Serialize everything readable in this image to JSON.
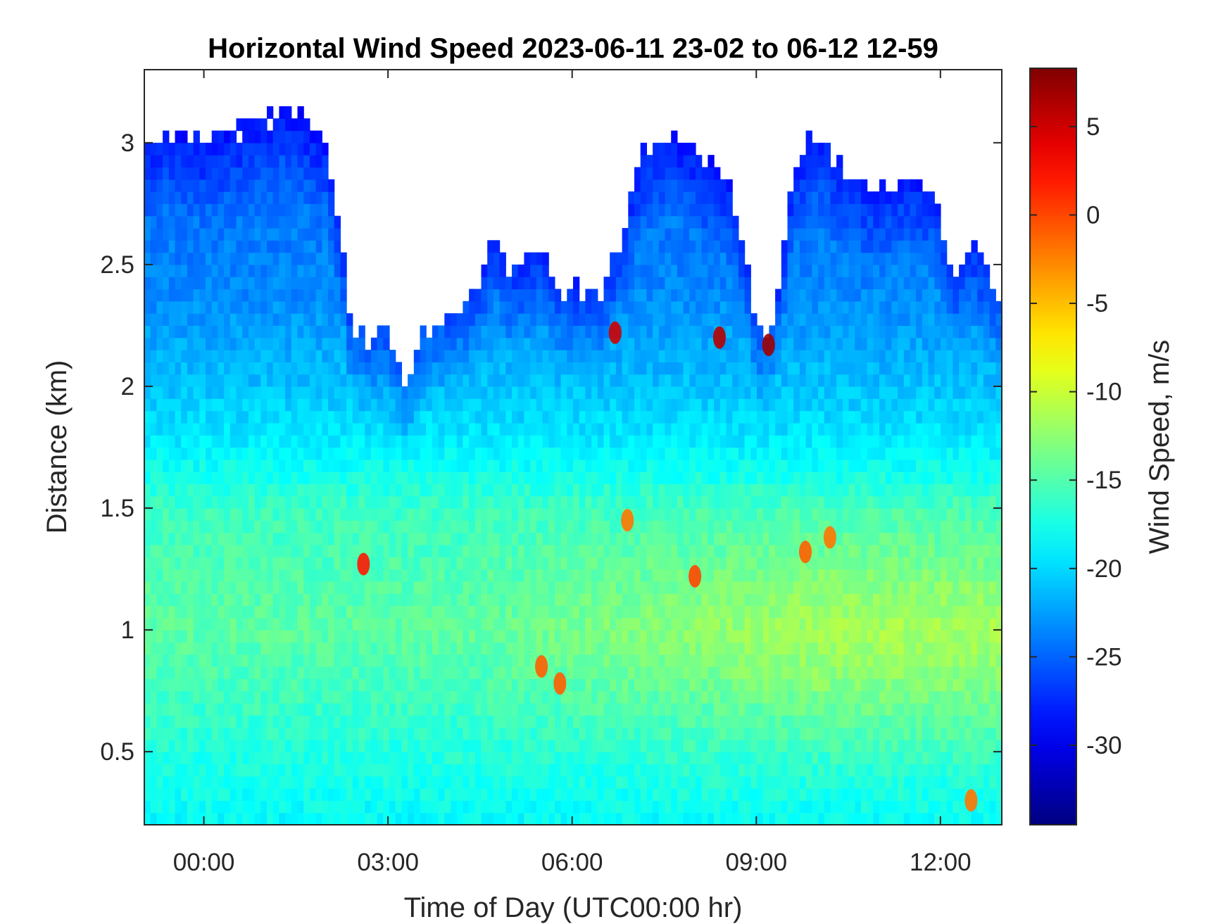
{
  "chart_data": {
    "type": "heatmap",
    "title": "Horizontal Wind Speed 2023-06-11 23-02 to 06-12 12-59",
    "xlabel": "Time of Day (UTC00:00 hr)",
    "ylabel": "Distance (km)",
    "colorbar_label": "Wind Speed, m/s",
    "colormap": "jet",
    "xlim": [
      -0.97,
      13.0
    ],
    "ylim": [
      0.2,
      3.3
    ],
    "clim": [
      -34.5,
      8.3
    ],
    "x_ticks": [
      {
        "value": 0,
        "label": "00:00"
      },
      {
        "value": 3,
        "label": "03:00"
      },
      {
        "value": 6,
        "label": "06:00"
      },
      {
        "value": 9,
        "label": "09:00"
      },
      {
        "value": 12,
        "label": "12:00"
      }
    ],
    "y_ticks": [
      {
        "value": 0.5,
        "label": "0.5"
      },
      {
        "value": 1,
        "label": "1"
      },
      {
        "value": 1.5,
        "label": "1.5"
      },
      {
        "value": 2,
        "label": "2"
      },
      {
        "value": 2.5,
        "label": "2.5"
      },
      {
        "value": 3,
        "label": "3"
      }
    ],
    "colorbar_ticks": [
      {
        "value": 5,
        "label": "5"
      },
      {
        "value": 0,
        "label": "0"
      },
      {
        "value": -5,
        "label": "-5"
      },
      {
        "value": -10,
        "label": "-10"
      },
      {
        "value": -15,
        "label": "-15"
      },
      {
        "value": -20,
        "label": "-20"
      },
      {
        "value": -25,
        "label": "-25"
      },
      {
        "value": -30,
        "label": "-30"
      }
    ],
    "data_top_km": [
      [
        -0.97,
        3.0
      ],
      [
        -0.5,
        3.05
      ],
      [
        0,
        3.0
      ],
      [
        0.5,
        3.05
      ],
      [
        1.0,
        3.1
      ],
      [
        1.3,
        3.15
      ],
      [
        1.6,
        3.1
      ],
      [
        2.0,
        3.0
      ],
      [
        2.3,
        2.5
      ],
      [
        2.4,
        2.25
      ],
      [
        2.7,
        2.2
      ],
      [
        3.0,
        2.2
      ],
      [
        3.3,
        2.0
      ],
      [
        3.6,
        2.25
      ],
      [
        4.0,
        2.3
      ],
      [
        4.5,
        2.4
      ],
      [
        4.7,
        2.65
      ],
      [
        5.0,
        2.45
      ],
      [
        5.5,
        2.55
      ],
      [
        5.8,
        2.4
      ],
      [
        6.2,
        2.4
      ],
      [
        6.4,
        2.35
      ],
      [
        6.8,
        2.6
      ],
      [
        7.1,
        2.95
      ],
      [
        7.6,
        3.05
      ],
      [
        8.0,
        2.95
      ],
      [
        8.5,
        2.85
      ],
      [
        8.8,
        2.6
      ],
      [
        9.0,
        2.2
      ],
      [
        9.3,
        2.25
      ],
      [
        9.6,
        2.9
      ],
      [
        10.0,
        3.05
      ],
      [
        10.5,
        2.85
      ],
      [
        11.0,
        2.8
      ],
      [
        11.5,
        2.85
      ],
      [
        11.9,
        2.8
      ],
      [
        12.2,
        2.45
      ],
      [
        12.5,
        2.6
      ],
      [
        12.8,
        2.45
      ],
      [
        13.0,
        2.35
      ]
    ],
    "speed_profile": [
      [
        0.2,
        -18.5
      ],
      [
        0.5,
        -17.0
      ],
      [
        1.0,
        -14.5
      ],
      [
        1.5,
        -16.0
      ],
      [
        1.8,
        -19.5
      ],
      [
        2.0,
        -21.0
      ],
      [
        2.4,
        -23.5
      ],
      [
        3.3,
        -25.5
      ]
    ],
    "hotspots": [
      {
        "t": 2.6,
        "km": 1.27,
        "speed": 2
      },
      {
        "t": 5.5,
        "km": 0.85,
        "speed": -1
      },
      {
        "t": 5.8,
        "km": 0.78,
        "speed": -1
      },
      {
        "t": 6.9,
        "km": 1.45,
        "speed": -2
      },
      {
        "t": 8.0,
        "km": 1.22,
        "speed": 0
      },
      {
        "t": 9.8,
        "km": 1.32,
        "speed": -1
      },
      {
        "t": 10.2,
        "km": 1.38,
        "speed": -2
      },
      {
        "t": 6.7,
        "km": 2.22,
        "speed": 5
      },
      {
        "t": 8.4,
        "km": 2.2,
        "speed": 6
      },
      {
        "t": 9.2,
        "km": 2.17,
        "speed": 7
      },
      {
        "t": 12.5,
        "km": 0.3,
        "speed": -2
      }
    ]
  }
}
